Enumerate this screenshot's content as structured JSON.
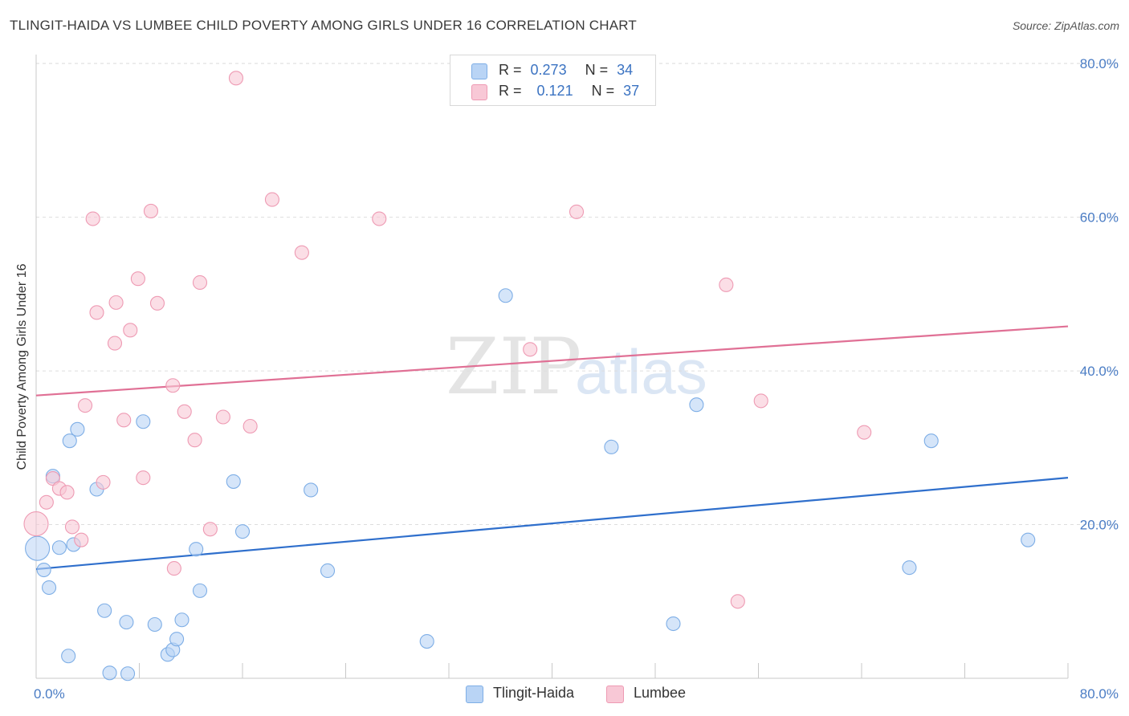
{
  "header": {
    "title": "TLINGIT-HAIDA VS LUMBEE CHILD POVERTY AMONG GIRLS UNDER 16 CORRELATION CHART",
    "source": "Source: ZipAtlas.com"
  },
  "watermark": {
    "zip": "ZIP",
    "atlas": "atlas"
  },
  "legend_top": {
    "rows": [
      {
        "r_label": "R =",
        "r_value": "0.273",
        "n_label": "N =",
        "n_value": "34"
      },
      {
        "r_label": "R =",
        "r_value": "0.121",
        "n_label": "N =",
        "n_value": "37"
      }
    ]
  },
  "colors": {
    "tlingit_fill": "#b9d4f5",
    "tlingit_stroke": "#7eaee6",
    "tlingit_line": "#2f6fcc",
    "lumbee_fill": "#f8c8d6",
    "lumbee_stroke": "#ee9ab3",
    "lumbee_line": "#e07095",
    "tick_text": "#4a7cc4",
    "grid": "#dddddd"
  },
  "chart_data": {
    "type": "scatter",
    "title": "TLINGIT-HAIDA VS LUMBEE CHILD POVERTY AMONG GIRLS UNDER 16 CORRELATION CHART",
    "xlabel": "",
    "ylabel": "Child Poverty Among Girls Under 16",
    "xlim": [
      0,
      80
    ],
    "ylim": [
      0,
      82
    ],
    "x_tick_labels": [
      "0.0%",
      "80.0%"
    ],
    "y_ticks": [
      20,
      40,
      60,
      80
    ],
    "y_tick_labels": [
      "20.0%",
      "40.0%",
      "60.0%",
      "80.0%"
    ],
    "grid": true,
    "legend_position": "bottom",
    "series": [
      {
        "name": "Tlingit-Haida",
        "trend": {
          "x": [
            0,
            80
          ],
          "y": [
            14.2,
            26.1
          ]
        },
        "points": [
          {
            "x": 0.1,
            "y": 16.9,
            "big": true
          },
          {
            "x": 0.6,
            "y": 14.1
          },
          {
            "x": 1.0,
            "y": 11.8
          },
          {
            "x": 1.3,
            "y": 26.3
          },
          {
            "x": 1.8,
            "y": 17.0
          },
          {
            "x": 2.5,
            "y": 2.9
          },
          {
            "x": 2.6,
            "y": 30.9
          },
          {
            "x": 2.9,
            "y": 17.4
          },
          {
            "x": 3.2,
            "y": 32.4
          },
          {
            "x": 4.7,
            "y": 24.6
          },
          {
            "x": 5.3,
            "y": 8.8
          },
          {
            "x": 5.7,
            "y": 0.7
          },
          {
            "x": 7.0,
            "y": 7.3
          },
          {
            "x": 7.1,
            "y": 0.6
          },
          {
            "x": 8.3,
            "y": 33.4
          },
          {
            "x": 9.2,
            "y": 7.0
          },
          {
            "x": 10.2,
            "y": 3.1
          },
          {
            "x": 10.6,
            "y": 3.7
          },
          {
            "x": 10.9,
            "y": 5.1
          },
          {
            "x": 11.3,
            "y": 7.6
          },
          {
            "x": 12.4,
            "y": 16.8
          },
          {
            "x": 12.7,
            "y": 11.4
          },
          {
            "x": 15.3,
            "y": 25.6
          },
          {
            "x": 16.0,
            "y": 19.1
          },
          {
            "x": 21.3,
            "y": 24.5
          },
          {
            "x": 22.6,
            "y": 14.0
          },
          {
            "x": 30.3,
            "y": 4.8
          },
          {
            "x": 36.4,
            "y": 49.8
          },
          {
            "x": 44.6,
            "y": 30.1
          },
          {
            "x": 49.4,
            "y": 7.1
          },
          {
            "x": 51.2,
            "y": 35.6
          },
          {
            "x": 67.7,
            "y": 14.4
          },
          {
            "x": 69.4,
            "y": 30.9
          },
          {
            "x": 76.9,
            "y": 18.0
          }
        ]
      },
      {
        "name": "Lumbee",
        "trend": {
          "x": [
            0,
            80
          ],
          "y": [
            36.8,
            45.8
          ]
        },
        "points": [
          {
            "x": 0.0,
            "y": 20.1,
            "big": true
          },
          {
            "x": 0.8,
            "y": 22.9
          },
          {
            "x": 1.3,
            "y": 26.0
          },
          {
            "x": 1.8,
            "y": 24.7
          },
          {
            "x": 2.4,
            "y": 24.2
          },
          {
            "x": 2.8,
            "y": 19.7
          },
          {
            "x": 3.5,
            "y": 18.0
          },
          {
            "x": 3.8,
            "y": 35.5
          },
          {
            "x": 4.4,
            "y": 59.8
          },
          {
            "x": 4.7,
            "y": 47.6
          },
          {
            "x": 5.2,
            "y": 25.5
          },
          {
            "x": 6.1,
            "y": 43.6
          },
          {
            "x": 6.2,
            "y": 48.9
          },
          {
            "x": 6.8,
            "y": 33.6
          },
          {
            "x": 7.3,
            "y": 45.3
          },
          {
            "x": 7.9,
            "y": 52.0
          },
          {
            "x": 8.3,
            "y": 26.1
          },
          {
            "x": 8.9,
            "y": 60.8
          },
          {
            "x": 9.4,
            "y": 48.8
          },
          {
            "x": 10.6,
            "y": 38.1
          },
          {
            "x": 10.7,
            "y": 14.3
          },
          {
            "x": 11.5,
            "y": 34.7
          },
          {
            "x": 12.3,
            "y": 31.0
          },
          {
            "x": 12.7,
            "y": 51.5
          },
          {
            "x": 13.5,
            "y": 19.4
          },
          {
            "x": 14.5,
            "y": 34.0
          },
          {
            "x": 15.5,
            "y": 78.1
          },
          {
            "x": 16.6,
            "y": 32.8
          },
          {
            "x": 18.3,
            "y": 62.3
          },
          {
            "x": 20.6,
            "y": 55.4
          },
          {
            "x": 26.6,
            "y": 59.8
          },
          {
            "x": 38.3,
            "y": 42.8
          },
          {
            "x": 41.9,
            "y": 60.7
          },
          {
            "x": 53.5,
            "y": 51.2
          },
          {
            "x": 54.4,
            "y": 10.0
          },
          {
            "x": 56.2,
            "y": 36.1
          },
          {
            "x": 64.2,
            "y": 32.0
          }
        ]
      }
    ]
  }
}
